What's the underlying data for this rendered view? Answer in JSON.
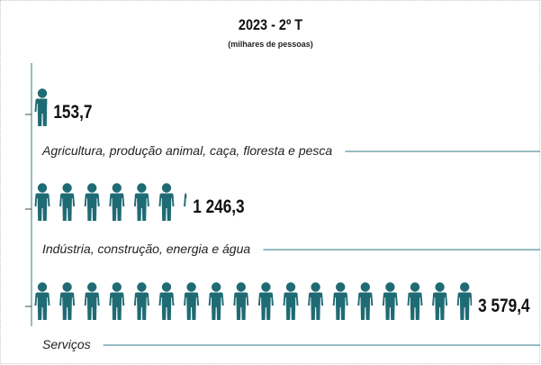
{
  "chart_data": {
    "type": "pictogram",
    "title": "2023 - 2º T",
    "subtitle": "(milhares de pessoas)",
    "unit_per_icon": 200,
    "accent_color": "#1f6b74",
    "line_color": "#2c7a84",
    "categories": [
      "Agricultura, produção animal, caça, floresta e pesca",
      "Indústria, construção, energia e água",
      "Serviços"
    ],
    "values": [
      153.7,
      1246.3,
      3579.4
    ],
    "value_labels": [
      "153,7",
      "1 246,3",
      "3 579,4"
    ]
  }
}
